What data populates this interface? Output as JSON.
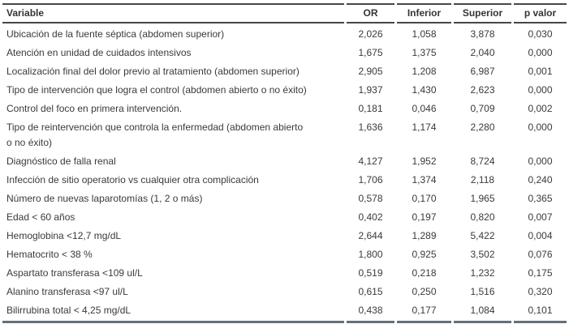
{
  "table": {
    "columns": {
      "variable": "Variable",
      "or": "OR",
      "inferior": "Inferior",
      "superior": "Superior",
      "p_valor": "p valor"
    },
    "rows": [
      {
        "variable": "Ubicación de la fuente séptica (abdomen superior)",
        "or": "2,026",
        "inferior": "1,058",
        "superior": "3,878",
        "p_valor": "0,030"
      },
      {
        "variable": "Atención en unidad de cuidados intensivos",
        "or": "1,675",
        "inferior": "1,375",
        "superior": "2,040",
        "p_valor": "0,000"
      },
      {
        "variable": "Localización final del dolor previo al tratamiento (abdomen superior)",
        "or": "2,905",
        "inferior": "1,208",
        "superior": "6,987",
        "p_valor": "0,001"
      },
      {
        "variable": "Tipo de intervención que logra el control (abdomen abierto o no éxito)",
        "or": "1,937",
        "inferior": "1,430",
        "superior": "2,623",
        "p_valor": "0,000"
      },
      {
        "variable": "Control del foco en primera intervención.",
        "or": "0,181",
        "inferior": "0,046",
        "superior": "0,709",
        "p_valor": "0,002"
      },
      {
        "variable": "Tipo de reintervención que controla la enfermedad (abdomen abierto\no no éxito)",
        "or": "1,636",
        "inferior": "1,174",
        "superior": "2,280",
        "p_valor": "0,000"
      },
      {
        "variable": "Diagnóstico de falla renal",
        "or": "4,127",
        "inferior": "1,952",
        "superior": "8,724",
        "p_valor": "0,000"
      },
      {
        "variable": "Infección de sitio operatorio vs cualquier otra complicación",
        "or": "1,706",
        "inferior": "1,374",
        "superior": "2,118",
        "p_valor": "0,240"
      },
      {
        "variable": "Número de nuevas laparotomías (1, 2 o más)",
        "or": "0,578",
        "inferior": "0,170",
        "superior": "1,965",
        "p_valor": "0,365"
      },
      {
        "variable": "Edad < 60 años",
        "or": "0,402",
        "inferior": "0,197",
        "superior": "0,820",
        "p_valor": "0,007"
      },
      {
        "variable": "Hemoglobina <12,7 mg/dL",
        "or": "2,644",
        "inferior": "1,289",
        "superior": "5,422",
        "p_valor": "0,004"
      },
      {
        "variable": "Hematocrito < 38 %",
        "or": "1,800",
        "inferior": "0,925",
        "superior": "3,502",
        "p_valor": "0,076"
      },
      {
        "variable": "Aspartato transferasa <109 ul/L",
        "or": "0,519",
        "inferior": "0,218",
        "superior": "1,232",
        "p_valor": "0,175"
      },
      {
        "variable": "Alanino transferasa <97 ul/L",
        "or": "0,615",
        "inferior": "0,250",
        "superior": "1,516",
        "p_valor": "0,320"
      },
      {
        "variable": "Bilirrubina total < 4,25 mg/dL",
        "or": "0,438",
        "inferior": "0,177",
        "superior": "1,084",
        "p_valor": "0,101"
      }
    ]
  },
  "colors": {
    "text": "#3a3a3a",
    "rule_dark": "#474747",
    "rule_bottom": "#64707a",
    "background": "#ffffff"
  }
}
